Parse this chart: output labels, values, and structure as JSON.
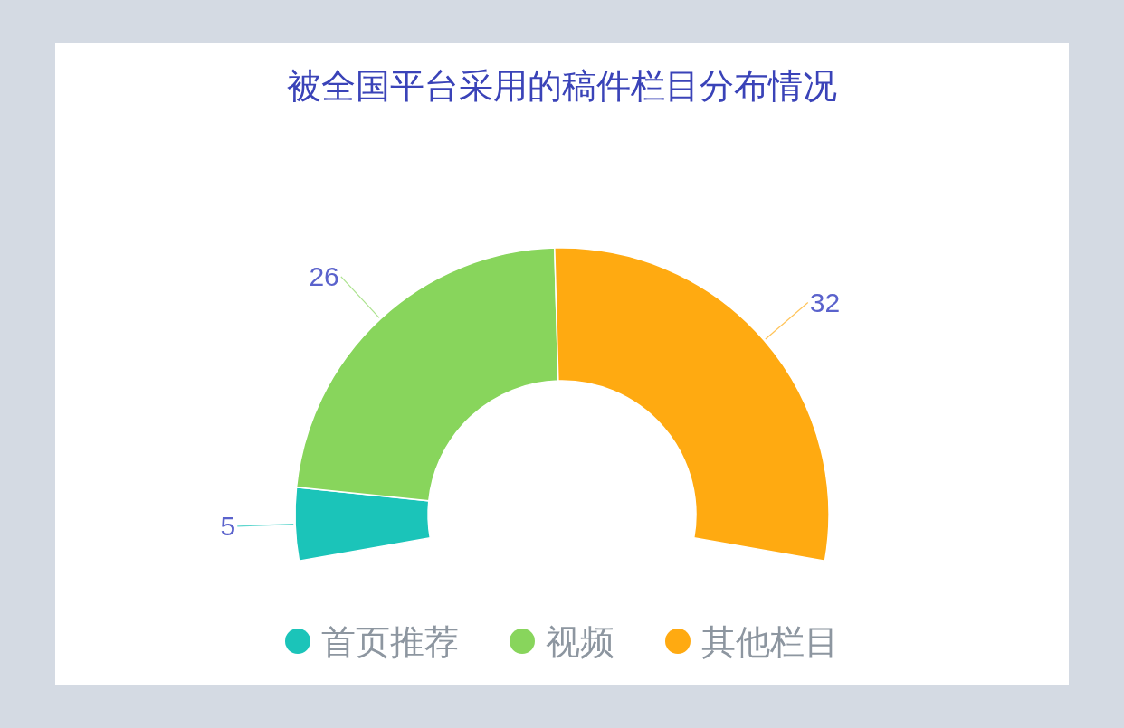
{
  "chart_data": {
    "type": "donut",
    "title": "被全国平台采用的稿件栏目分布情况",
    "categories": [
      "首页推荐",
      "视频",
      "其他栏目"
    ],
    "values": [
      5,
      26,
      32
    ],
    "colors": [
      "#1bc4b9",
      "#88d55c",
      "#ffaa11"
    ],
    "data_labels": true,
    "legend": "bottom"
  }
}
